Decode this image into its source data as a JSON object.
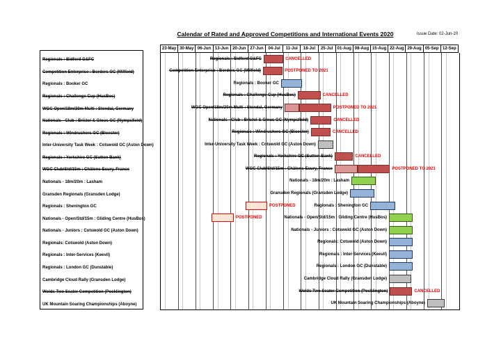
{
  "title": "Calendar of Rated and Approved Competitions and International Events 2020",
  "issue_date": "Issue Date: 02-Jun-20",
  "chart_data": {
    "type": "bar",
    "subtype": "gantt-calendar",
    "legend_position": "none",
    "grid": true,
    "week_columns": [
      "23-May",
      "30-May",
      "06-Jun",
      "13-Jun",
      "20-Jun",
      "27-Jun",
      "04-Jul",
      "11-Jul",
      "18-Jul",
      "25-Jul",
      "01-Aug",
      "08-Aug",
      "15-Aug",
      "22-Aug",
      "29-Aug",
      "05-Sep",
      "12-Sep"
    ],
    "colors": {
      "red": "#C0504D",
      "red_border": "#7F2B28",
      "lightred": "#D99694",
      "blue": "#95B3D7",
      "blue_border": "#1F3864",
      "green": "#92D050",
      "green_border": "#2F5B14",
      "gray": "#BFBFBF",
      "gray_border": "#3B3B3B",
      "ghost_fill": "#FBE5D6",
      "ghost_border": "#E60000",
      "status_text": "#E80000"
    },
    "rows": [
      {
        "label": "Regionals : Bidford G&FC",
        "struck": true,
        "bars": [
          {
            "color": "red",
            "start_week": 5.86,
            "span_weeks": 1.12
          }
        ],
        "status": "CANCELLED"
      },
      {
        "label": "Competition Enterprise : Borders GC (Milfield)",
        "struck": true,
        "bars": [
          {
            "color": "red",
            "start_week": 5.82,
            "span_weeks": 1.12
          }
        ],
        "status": "POSTPONED TO 2021"
      },
      {
        "label": "Regionals : Booker GC",
        "struck": false,
        "bars": [
          {
            "color": "blue",
            "start_week": 6.85,
            "span_weeks": 1.2
          }
        ]
      },
      {
        "label": "Regionals : Challenge Cup (HusBos)",
        "struck": true,
        "bars": [
          {
            "color": "red",
            "start_week": 7.8,
            "span_weeks": 1.3
          }
        ],
        "status": "CANCELLED"
      },
      {
        "label": "WGC Open/18m/20m Multi : Stendal, Germany",
        "struck": true,
        "bars": [
          {
            "color": "lightred",
            "start_week": 7.05,
            "span_weeks": 0.85
          },
          {
            "color": "red",
            "start_week": 7.9,
            "span_weeks": 1.8
          }
        ],
        "status": "POSTPONED TO 2021"
      },
      {
        "label": "Nationals - Club : Bristol & Glous GC (Nympsfield)",
        "struck": true,
        "bars": [
          {
            "color": "red",
            "start_week": 8.52,
            "span_weeks": 1.2
          }
        ],
        "status": "CANCELLED"
      },
      {
        "label": "Regionals : Windrushers GC (Bicester)",
        "struck": true,
        "bars": [
          {
            "color": "red",
            "start_week": 8.55,
            "span_weeks": 1.12
          }
        ],
        "status": "CANCELLED"
      },
      {
        "label": "Inter-University Task Week : Cotswold GC (Aston Down)",
        "struck": false,
        "bars": [
          {
            "color": "gray",
            "start_week": 8.95,
            "span_weeks": 0.88
          }
        ]
      },
      {
        "label": "Regionals : Yorkshire GC (Sutton Bank)",
        "struck": true,
        "bars": [
          {
            "color": "red",
            "start_week": 9.9,
            "span_weeks": 1.05
          }
        ],
        "status": "CANCELLED"
      },
      {
        "label": "WGC Club/Std/15m : Châlons-Ecury, France",
        "struck": true,
        "bars": [
          {
            "color": "lightred",
            "start_week": 9.9,
            "span_weeks": 1.3
          },
          {
            "color": "red",
            "start_week": 11.2,
            "span_weeks": 1.85
          }
        ],
        "status": "POSTPONED TO 2021"
      },
      {
        "label": "Nationals - 18m/20m : Lasham",
        "struck": false,
        "bars": [
          {
            "color": "green",
            "start_week": 10.86,
            "span_weeks": 1.38
          }
        ]
      },
      {
        "label": "Gransden Regionals (Gransden Lodge)",
        "struck": false,
        "bars": [
          {
            "color": "blue",
            "start_week": 10.78,
            "span_weeks": 1.38
          }
        ]
      },
      {
        "label": "Regionals : Shenington GC",
        "struck": false,
        "ghost_bar": {
          "start_week": 4.83,
          "span_weeks": 1.23
        },
        "ghost_status": "POSTPONED",
        "bars": [
          {
            "color": "blue",
            "start_week": 11.93,
            "span_weeks": 1.42
          }
        ]
      },
      {
        "label": "Nationals - Open/Std/15m : Gliding Centre (HusBos)",
        "struck": false,
        "ghost_bar": {
          "start_week": 2.89,
          "span_weeks": 1.27
        },
        "ghost_status": "POSTPONED",
        "bars": [
          {
            "color": "green",
            "start_week": 13.0,
            "span_weeks": 1.35
          }
        ]
      },
      {
        "label": "Nationals - Juniors : Cotswold GC (Aston Down)",
        "struck": false,
        "bars": [
          {
            "color": "green",
            "start_week": 13.0,
            "span_weeks": 1.35
          }
        ]
      },
      {
        "label": "Regionals: Cotswold (Aston Down)",
        "struck": false,
        "bars": [
          {
            "color": "blue",
            "start_week": 13.0,
            "span_weeks": 1.35
          }
        ]
      },
      {
        "label": "Regionals : Inter-Services (Keevil)",
        "struck": false,
        "bars": [
          {
            "color": "blue",
            "start_week": 13.0,
            "span_weeks": 1.35
          }
        ]
      },
      {
        "label": "Regionals : London GC (Dunstable)",
        "struck": false,
        "bars": [
          {
            "color": "blue",
            "start_week": 13.0,
            "span_weeks": 1.35
          }
        ]
      },
      {
        "label": "Cambridge Cloud Rally (Gransden Lodge)",
        "struck": false,
        "bars": [
          {
            "color": "gray",
            "start_week": 13.0,
            "span_weeks": 1.27
          }
        ]
      },
      {
        "label": "Wolds Two Seater Competition (Pocklington)",
        "struck": true,
        "bars": [
          {
            "color": "red",
            "start_week": 13.05,
            "span_weeks": 1.27
          }
        ],
        "status": "CANCELLED"
      },
      {
        "label": "UK Mountain Soaring Championships (Aboyne)",
        "struck": false,
        "bars": [
          {
            "color": "gray",
            "start_week": 15.17,
            "span_weeks": 1.0
          }
        ]
      }
    ]
  }
}
